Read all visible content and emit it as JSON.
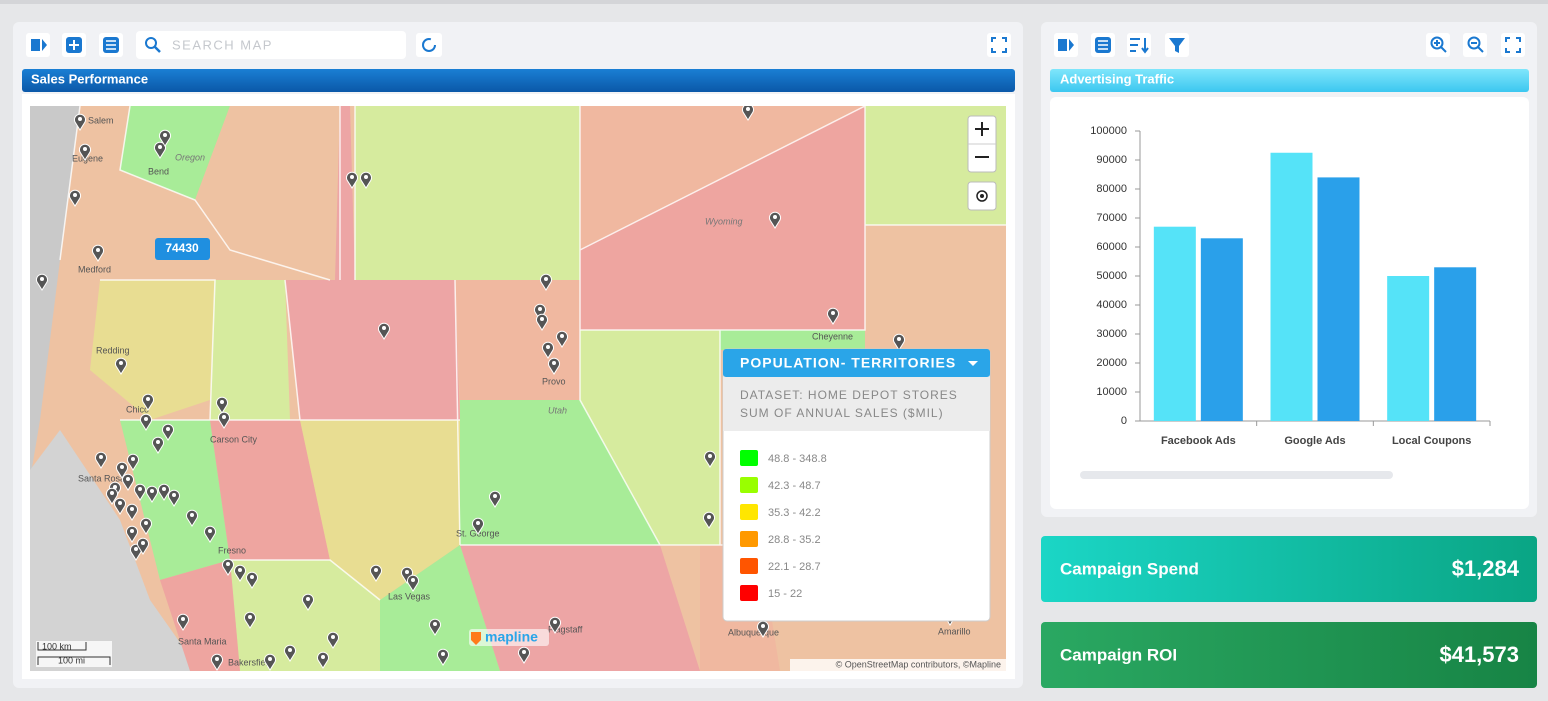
{
  "toolbar": {
    "search_placeholder": "SEARCH MAP"
  },
  "map_panel": {
    "title": "Sales Performance",
    "badge": "74430",
    "places": [
      "Salem",
      "Eugene",
      "Oregon",
      "Bend",
      "Medford",
      "Redding",
      "Chico",
      "Carson City",
      "Santa Rosa",
      "Fresno",
      "Bakersfield",
      "Santa Maria",
      "Provo",
      "Utah",
      "St. George",
      "Las Vegas",
      "Flagstaff",
      "Albuquerque",
      "Amarillo",
      "Wyoming",
      "Cheyenne"
    ],
    "legend": {
      "title": "POPULATION- TERRITORIES",
      "dataset": "DATASET: HOME DEPOT STORES",
      "measure": "SUM OF ANNUAL SALES ($MIL)",
      "items": [
        {
          "label": "48.8 - 348.8",
          "color": "#00ff00"
        },
        {
          "label": "42.3 - 48.7",
          "color": "#99ff00"
        },
        {
          "label": "35.3 - 42.2",
          "color": "#ffe600"
        },
        {
          "label": "28.8 - 35.2",
          "color": "#ff9900"
        },
        {
          "label": "22.1 - 28.7",
          "color": "#ff5500"
        },
        {
          "label": "15 - 22",
          "color": "#ff0000"
        }
      ]
    },
    "scale": [
      "100 km",
      "100 mi"
    ],
    "attribution": "© OpenStreetMap contributors, ©Mapline",
    "brand": "mapline"
  },
  "chart_data": {
    "type": "bar",
    "title": "Advertising Traffic",
    "categories": [
      "Facebook Ads",
      "Google Ads",
      "Local Coupons"
    ],
    "series": [
      {
        "color": "#55e3f8",
        "values": [
          67000,
          92500,
          50000
        ]
      },
      {
        "color": "#2aa0ea",
        "values": [
          63000,
          84000,
          53000
        ]
      }
    ],
    "ylim": [
      0,
      100000
    ],
    "yticks": [
      0,
      10000,
      20000,
      30000,
      40000,
      50000,
      60000,
      70000,
      80000,
      90000,
      100000
    ]
  },
  "kpis": [
    {
      "label": "Campaign Spend",
      "value": "$1,284"
    },
    {
      "label": "Campaign ROI",
      "value": "$41,573"
    }
  ]
}
